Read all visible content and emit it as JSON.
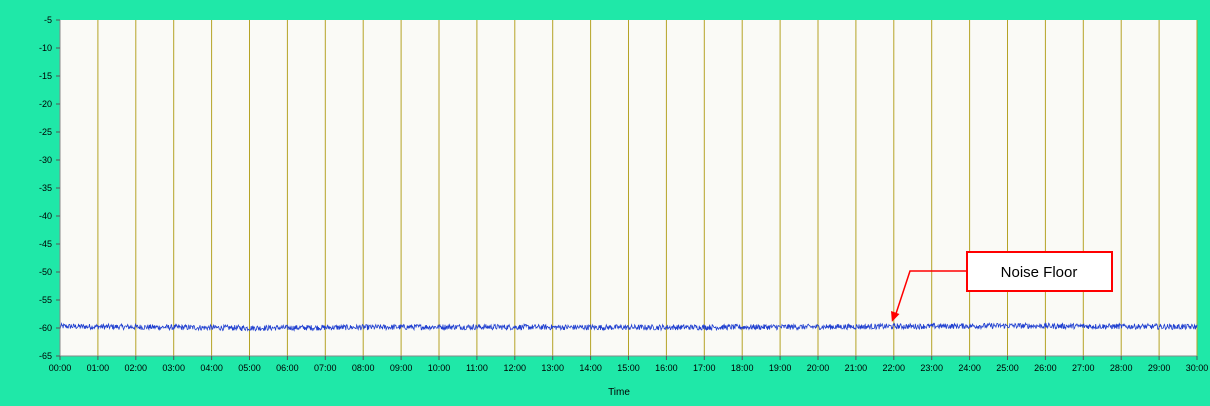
{
  "chart_data": {
    "type": "line",
    "title": "",
    "xlabel": "Time",
    "ylabel": "",
    "x_ticks": [
      "00:00",
      "01:00",
      "02:00",
      "03:00",
      "04:00",
      "05:00",
      "06:00",
      "07:00",
      "08:00",
      "09:00",
      "10:00",
      "11:00",
      "12:00",
      "13:00",
      "14:00",
      "15:00",
      "16:00",
      "17:00",
      "18:00",
      "19:00",
      "20:00",
      "21:00",
      "22:00",
      "23:00",
      "24:00",
      "25:00",
      "26:00",
      "27:00",
      "28:00",
      "29:00",
      "30:00"
    ],
    "xlim": [
      0,
      30
    ],
    "y_ticks": [
      -5,
      -10,
      -15,
      -20,
      -25,
      -30,
      -35,
      -40,
      -45,
      -50,
      -55,
      -60,
      -65
    ],
    "ylim": [
      -65,
      -5
    ],
    "grid": "vertical",
    "series": [
      {
        "name": "",
        "color": "#1f3fd0",
        "mean": -59.8,
        "spread": 1.0,
        "x": [
          0,
          5,
          10,
          15,
          20,
          25,
          30
        ],
        "values": [
          -59.7,
          -60.0,
          -59.8,
          -59.9,
          -59.8,
          -59.6,
          -59.8
        ]
      }
    ],
    "annotations": [
      {
        "text": "Noise Floor",
        "point_x": 21.95,
        "point_y": -59.8,
        "color": "#ff0000"
      }
    ]
  },
  "colors": {
    "background": "#1fe8a8",
    "plot_area": "#fafaf6",
    "grid": "#b5a326",
    "axis": "#888888",
    "annotation": "#ff0000"
  }
}
